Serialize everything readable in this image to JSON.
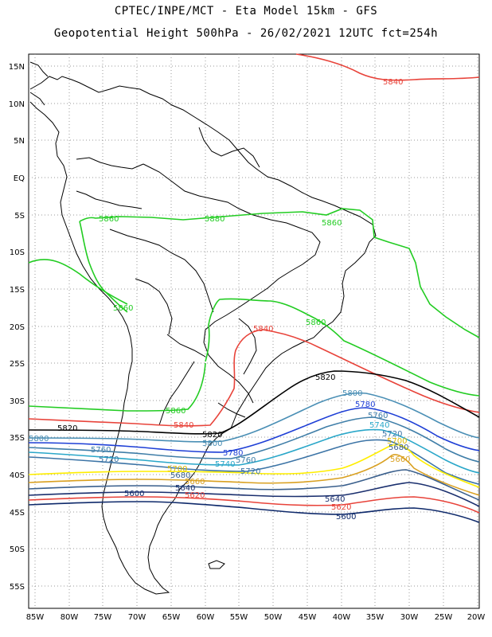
{
  "header": {
    "line1": "CPTEC/INPE/MCT -  Eta Model 15km - GFS",
    "line2": "Geopotential Height 500hPa - 26/02/2021 12UTC fct=254h"
  },
  "axes": {
    "lat_labels": [
      "15N",
      "10N",
      "5N",
      "EQ",
      "5S",
      "10S",
      "15S",
      "20S",
      "25S",
      "30S",
      "35S",
      "40S",
      "45S",
      "50S",
      "55S"
    ],
    "lon_labels": [
      "85W",
      "80W",
      "75W",
      "70W",
      "65W",
      "60W",
      "55W",
      "50W",
      "45W",
      "40W",
      "35W",
      "30W",
      "25W",
      "20W"
    ]
  },
  "contours": [
    {
      "value": "5840",
      "color": "#e8433a"
    },
    {
      "value": "5860",
      "color": "#22cc22"
    },
    {
      "value": "5880",
      "color": "#22cc22"
    },
    {
      "value": "5820",
      "color": "#000000"
    },
    {
      "value": "5800",
      "color": "#4a8fb5"
    },
    {
      "value": "5780",
      "color": "#1e3fd6"
    },
    {
      "value": "5760",
      "color": "#3f7ea8"
    },
    {
      "value": "5740",
      "color": "#2aa7c9"
    },
    {
      "value": "5720",
      "color": "#3c74a6"
    },
    {
      "value": "5700",
      "color": "#ffee00"
    },
    {
      "value": "5680",
      "color": "#d9a020"
    },
    {
      "value": "5660",
      "color": "#3a5f8c"
    },
    {
      "value": "5640",
      "color": "#1a2f6e"
    },
    {
      "value": "5620",
      "color": "#e8433a"
    },
    {
      "value": "5600",
      "color": "#0f2a6b"
    }
  ],
  "labels": {
    "l5840_north": "5840",
    "l5860_a": "5860",
    "l5880": "5880",
    "l5860_b": "5860",
    "l5860_c": "5860",
    "l5860_d": "5860",
    "l5840_a": "5840",
    "l5840_b": "5840",
    "l5820_a": "5820",
    "l5820_b": "5820",
    "l5820_c": "5820",
    "l5800_a": "5800",
    "l5800_b": "5800",
    "l5800_c": "5800",
    "l5780_a": "5780",
    "l5780_b": "5780",
    "l5760_a": "5760",
    "l5760_b": "5760",
    "l5760_c": "5760",
    "l5740_a": "5740",
    "l5740_b": "5740",
    "l5720_a": "5720",
    "l5720_b": "5720",
    "l5720_c": "5720",
    "l5700_a": "5700",
    "l5700_b": "5700",
    "l5680_a": "5680",
    "l5680_b": "5680",
    "l5660_a": "5660",
    "l5660_b": "5660",
    "l5640_a": "5640",
    "l5640_b": "5640",
    "l5620_a": "5620",
    "l5620_b": "5620",
    "l5600_a": "5600",
    "l5600_b": "5600"
  }
}
